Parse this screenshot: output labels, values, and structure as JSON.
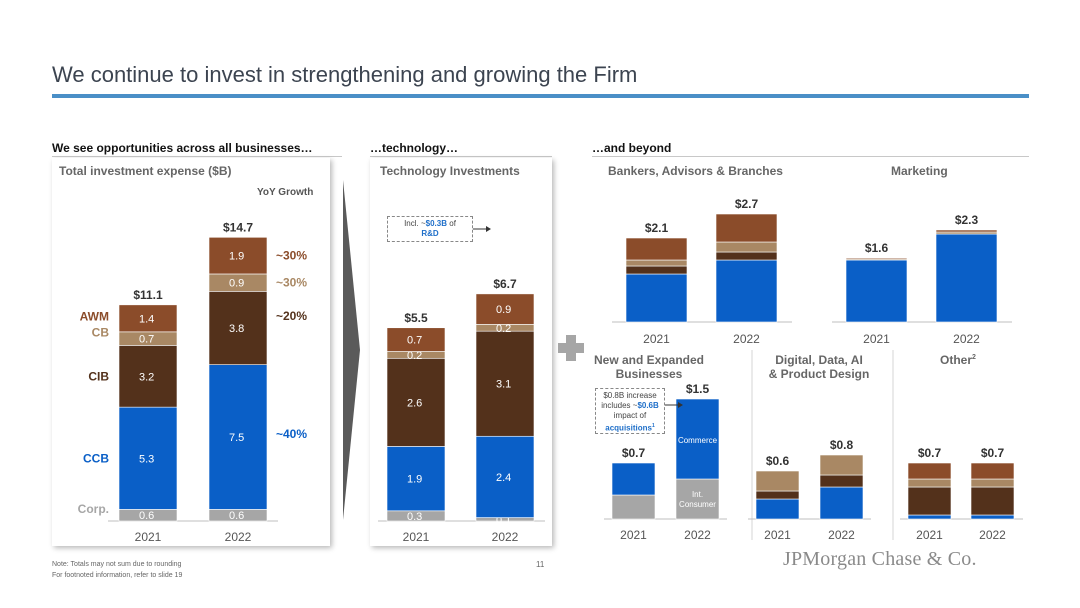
{
  "title": "We continue to invest in strengthening and growing the Firm",
  "sections": {
    "businesses": "We see opportunities across all businesses…",
    "technology": "…technology…",
    "beyond": "…and beyond"
  },
  "panels": {
    "total": "Total investment expense ($B)",
    "tech": "Technology Investments",
    "bankers": "Bankers, Advisors & Branches",
    "marketing": "Marketing",
    "new_biz_line1": "New and Expanded",
    "new_biz_line2": "Businesses",
    "digital_line1": "Digital, Data, AI",
    "digital_line2": "& Product Design",
    "other": "Other",
    "other_sup": "2"
  },
  "yoy_header": "YoY Growth",
  "tech_callout": {
    "prefix": "Incl. ~",
    "amount": "$0.3B",
    "mid": " of",
    "label": "R&D"
  },
  "newbiz_callout": {
    "line1": "$0.8B increase",
    "line2_prefix": "includes ~",
    "line2_amount": "$0.6B",
    "line3": "impact of",
    "line4": "acquisitions",
    "line4_sup": "1"
  },
  "footnotes": {
    "note1": "Note: Totals may not sum due to rounding",
    "note2": "For footnoted information, refer to slide 19"
  },
  "page_number": "11",
  "logo": "JPMorgan Chase & Co.",
  "colors": {
    "ccb": "#0a5fc7",
    "cib": "#53311b",
    "cb": "#a98864",
    "awm": "#8b4c2a",
    "corp": "#a6a6a6",
    "rule": "#4a8fc7"
  },
  "chart_data": [
    {
      "id": "total",
      "type": "bar",
      "stacked": true,
      "title": "Total investment expense ($B)",
      "categories": [
        "2021",
        "2022"
      ],
      "totals": [
        "$11.1",
        "$14.7"
      ],
      "series": [
        {
          "name": "Corp.",
          "values": [
            0.6,
            0.6
          ],
          "labels": [
            "0.6",
            "0.6"
          ],
          "color": "#a6a6a6"
        },
        {
          "name": "CCB",
          "values": [
            5.3,
            7.5
          ],
          "labels": [
            "5.3",
            "7.5"
          ],
          "color": "#0a5fc7"
        },
        {
          "name": "CIB",
          "values": [
            3.2,
            3.8
          ],
          "labels": [
            "3.2",
            "3.8"
          ],
          "color": "#53311b"
        },
        {
          "name": "CB",
          "values": [
            0.7,
            0.9
          ],
          "labels": [
            "0.7",
            "0.9"
          ],
          "color": "#a98864"
        },
        {
          "name": "AWM",
          "values": [
            1.4,
            1.9
          ],
          "labels": [
            "1.4",
            "1.9"
          ],
          "color": "#8b4c2a"
        }
      ],
      "yoy_growth": [
        {
          "series": "AWM",
          "label": "~30%",
          "color": "#8b4c2a"
        },
        {
          "series": "CB",
          "label": "~30%",
          "color": "#a98864"
        },
        {
          "series": "CIB",
          "label": "~20%",
          "color": "#53311b"
        },
        {
          "series": "CCB",
          "label": "~40%",
          "color": "#0a5fc7"
        }
      ]
    },
    {
      "id": "tech",
      "type": "bar",
      "stacked": true,
      "title": "Technology Investments",
      "categories": [
        "2021",
        "2022"
      ],
      "totals": [
        "$5.5",
        "$6.7"
      ],
      "series": [
        {
          "name": "Corp.",
          "values": [
            0.3,
            0.1
          ],
          "labels": [
            "0.3",
            "0.1"
          ],
          "color": "#a6a6a6"
        },
        {
          "name": "CCB",
          "values": [
            1.9,
            2.4
          ],
          "labels": [
            "1.9",
            "2.4"
          ],
          "color": "#0a5fc7"
        },
        {
          "name": "CIB",
          "values": [
            2.6,
            3.1
          ],
          "labels": [
            "2.6",
            "3.1"
          ],
          "color": "#53311b"
        },
        {
          "name": "CB",
          "values": [
            0.2,
            0.2
          ],
          "labels": [
            "0.2",
            "0.2"
          ],
          "color": "#a98864"
        },
        {
          "name": "AWM",
          "values": [
            0.7,
            0.9
          ],
          "labels": [
            "0.7",
            "0.9"
          ],
          "color": "#8b4c2a"
        }
      ]
    },
    {
      "id": "bankers",
      "type": "bar",
      "stacked": true,
      "title": "Bankers, Advisors & Branches",
      "categories": [
        "2021",
        "2022"
      ],
      "totals": [
        "$2.1",
        "$2.7"
      ],
      "series": [
        {
          "name": "CCB",
          "values": [
            1.2,
            1.55
          ],
          "color": "#0a5fc7"
        },
        {
          "name": "CIB",
          "values": [
            0.2,
            0.2
          ],
          "color": "#53311b"
        },
        {
          "name": "CB",
          "values": [
            0.15,
            0.25
          ],
          "color": "#a98864"
        },
        {
          "name": "AWM",
          "values": [
            0.55,
            0.7
          ],
          "color": "#8b4c2a"
        }
      ]
    },
    {
      "id": "marketing",
      "type": "bar",
      "stacked": true,
      "title": "Marketing",
      "categories": [
        "2021",
        "2022"
      ],
      "totals": [
        "$1.6",
        "$2.3"
      ],
      "series": [
        {
          "name": "CCB",
          "values": [
            1.55,
            2.2
          ],
          "color": "#0a5fc7"
        },
        {
          "name": "CB",
          "values": [
            0.03,
            0.05
          ],
          "color": "#a98864"
        },
        {
          "name": "AWM",
          "values": [
            0.02,
            0.05
          ],
          "color": "#8b4c2a"
        }
      ]
    },
    {
      "id": "newbiz",
      "type": "bar",
      "stacked": true,
      "title": "New and Expanded Businesses",
      "categories": [
        "2021",
        "2022"
      ],
      "totals": [
        "$0.7",
        "$1.5"
      ],
      "series": [
        {
          "name": "Int. Consumer",
          "values": [
            0.3,
            0.5
          ],
          "labels": [
            "",
            "Int. Consumer"
          ],
          "color": "#a6a6a6"
        },
        {
          "name": "Commerce",
          "values": [
            0.4,
            1.0
          ],
          "labels": [
            "",
            "Commerce"
          ],
          "color": "#0a5fc7"
        }
      ]
    },
    {
      "id": "digital",
      "type": "bar",
      "stacked": true,
      "title": "Digital, Data, AI & Product Design",
      "categories": [
        "2021",
        "2022"
      ],
      "totals": [
        "$0.6",
        "$0.8"
      ],
      "series": [
        {
          "name": "CCB",
          "values": [
            0.25,
            0.4
          ],
          "color": "#0a5fc7"
        },
        {
          "name": "CIB",
          "values": [
            0.1,
            0.15
          ],
          "color": "#53311b"
        },
        {
          "name": "AWM",
          "values": [
            0.25,
            0.25
          ],
          "color": "#a98864"
        }
      ]
    },
    {
      "id": "other",
      "type": "bar",
      "stacked": true,
      "title": "Other",
      "categories": [
        "2021",
        "2022"
      ],
      "totals": [
        "$0.7",
        "$0.7"
      ],
      "series": [
        {
          "name": "CCB",
          "values": [
            0.05,
            0.05
          ],
          "color": "#0a5fc7"
        },
        {
          "name": "CIB",
          "values": [
            0.35,
            0.35
          ],
          "color": "#53311b"
        },
        {
          "name": "CB",
          "values": [
            0.1,
            0.1
          ],
          "color": "#a98864"
        },
        {
          "name": "AWM",
          "values": [
            0.2,
            0.2
          ],
          "color": "#8b4c2a"
        }
      ]
    }
  ]
}
